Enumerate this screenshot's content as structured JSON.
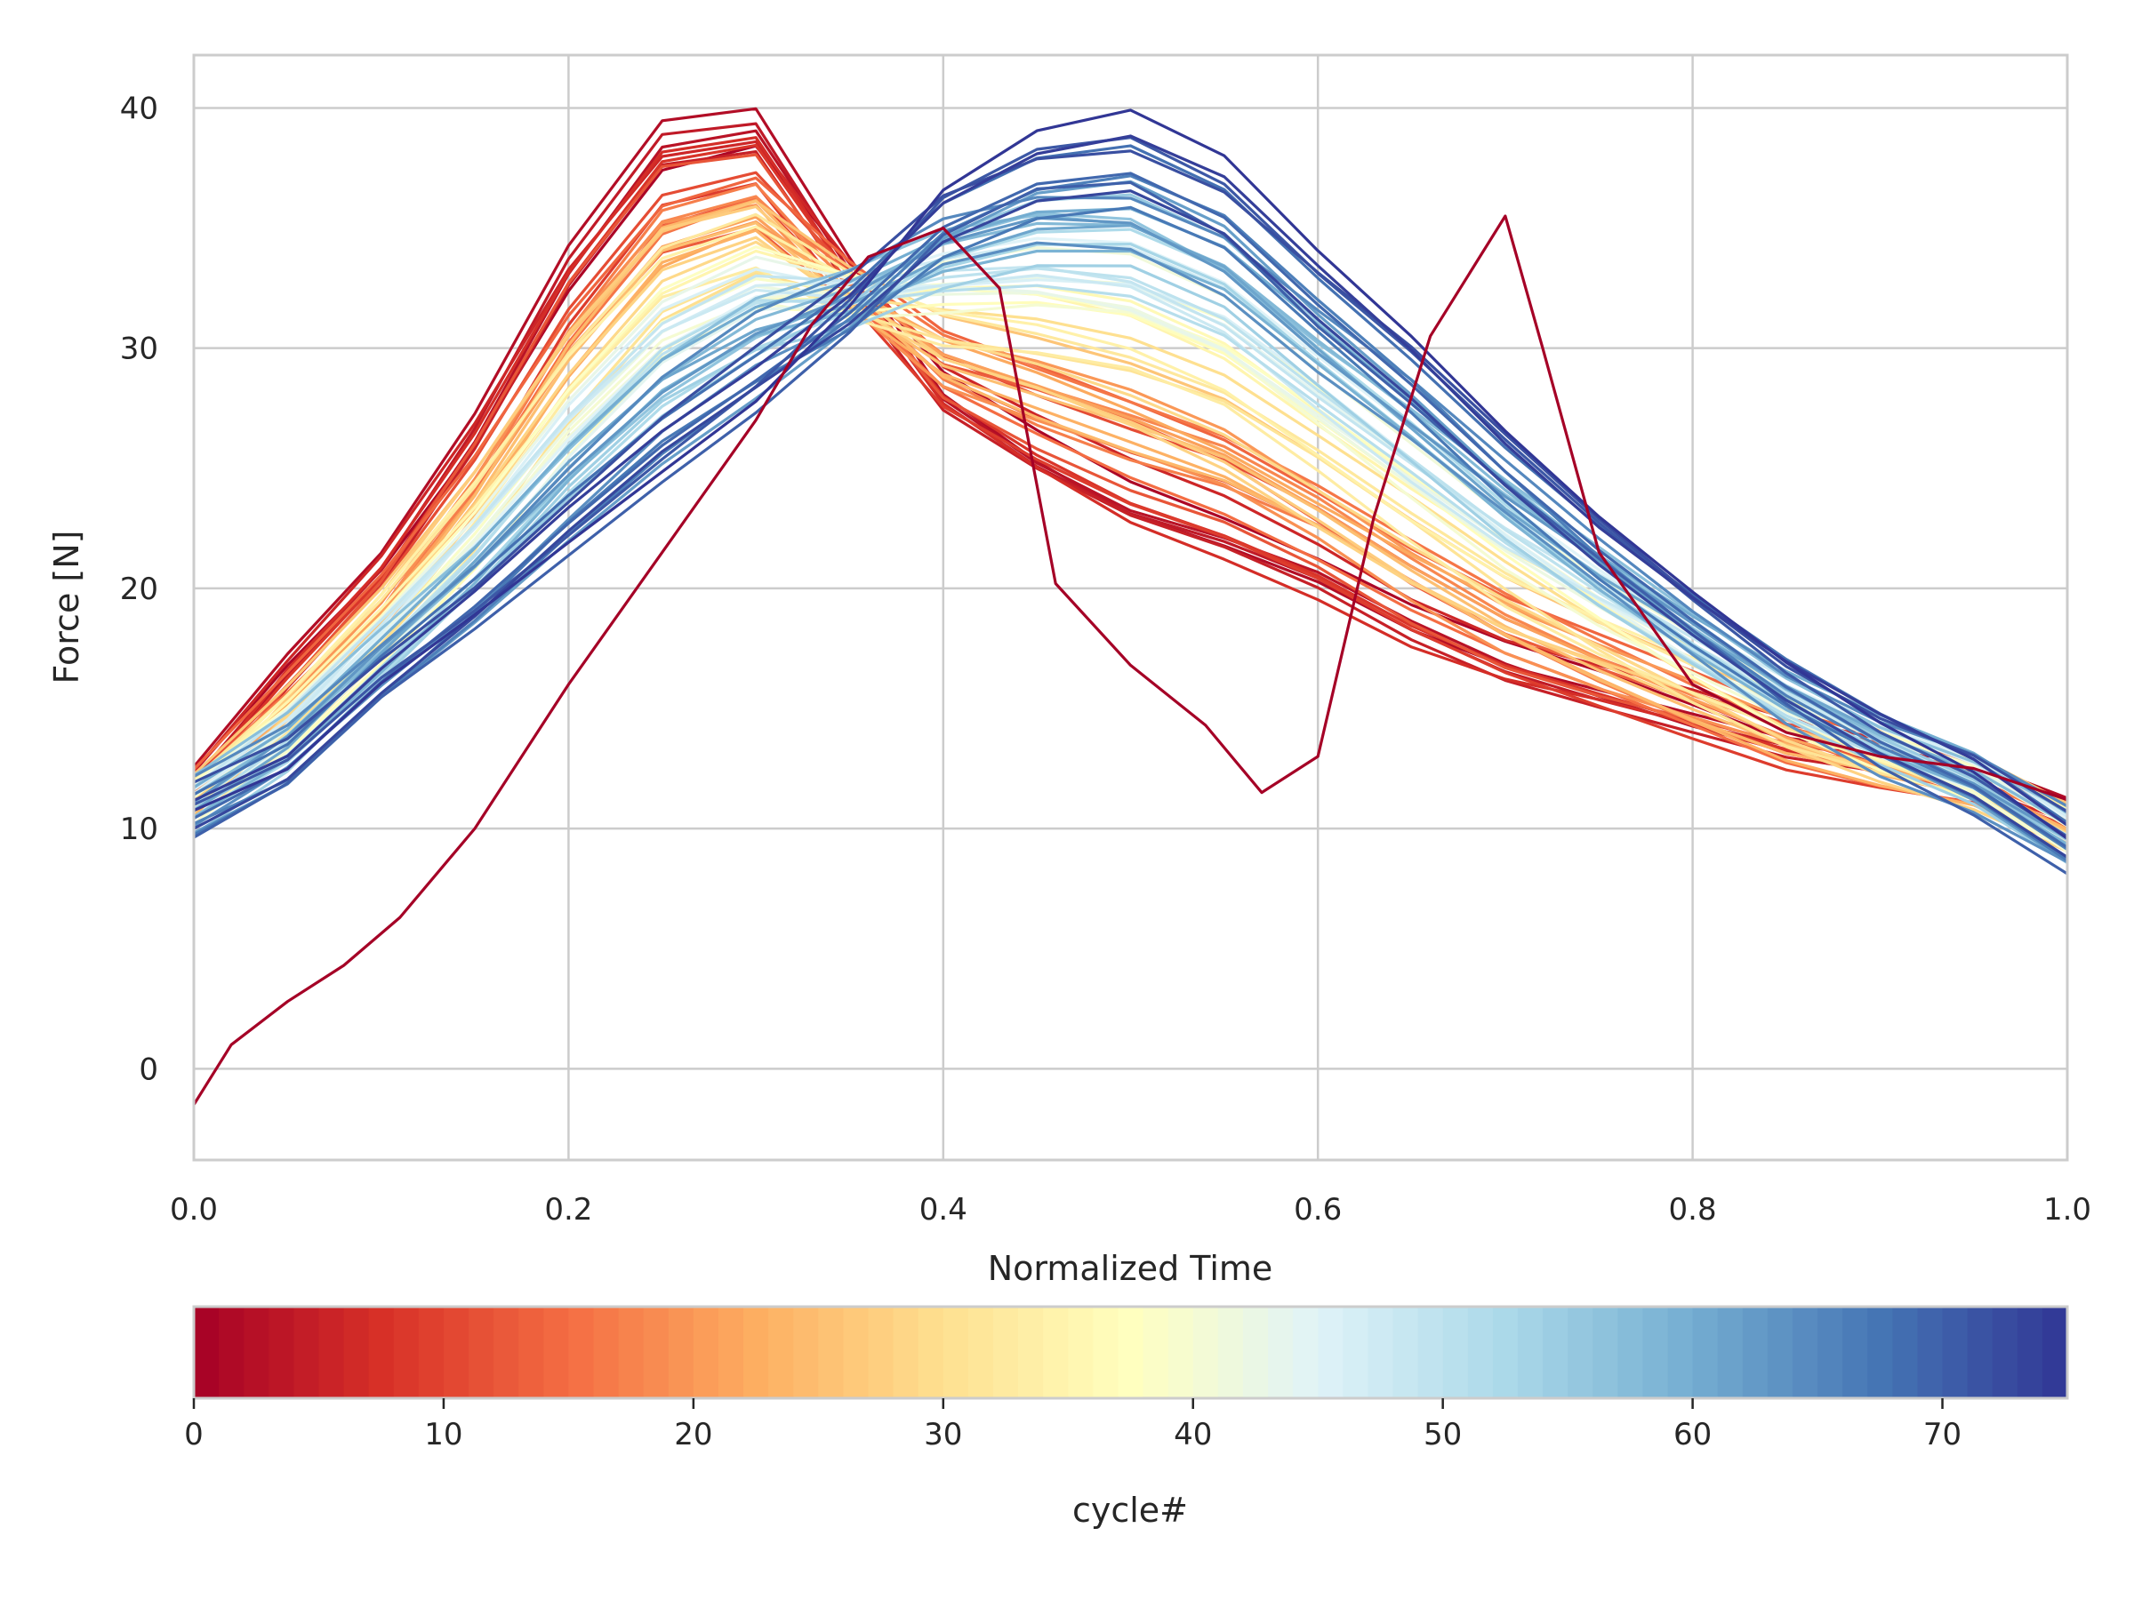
{
  "chart_data": {
    "type": "line",
    "title": "",
    "xlabel": "Normalized Time",
    "ylabel": "Force [N]",
    "xlim": [
      0.0,
      1.0
    ],
    "ylim": [
      -3.8,
      42.2
    ],
    "grid": true,
    "xticks": [
      0.0,
      0.2,
      0.4,
      0.6,
      0.8,
      1.0
    ],
    "xtick_labels": [
      "0.0",
      "0.2",
      "0.4",
      "0.6",
      "0.8",
      "1.0"
    ],
    "yticks": [
      0,
      10,
      20,
      30,
      40
    ],
    "ytick_labels": [
      "0",
      "10",
      "20",
      "30",
      "40"
    ],
    "series_count": 76,
    "series_template": {
      "x": [
        0.0,
        0.05,
        0.1,
        0.15,
        0.2,
        0.25,
        0.3,
        0.35,
        0.4,
        0.45,
        0.5,
        0.55,
        0.6,
        0.65,
        0.7,
        0.75,
        0.8,
        0.85,
        0.9,
        0.95,
        1.0
      ],
      "first": [
        11.8,
        16.5,
        20.7,
        26.5,
        33.5,
        38.7,
        39.2,
        33.0,
        27.3,
        24.5,
        22.3,
        21.0,
        19.5,
        17.5,
        16.0,
        15.0,
        14.0,
        13.0,
        12.5,
        12.0,
        10.5
      ],
      "last": [
        10.5,
        12.2,
        15.7,
        18.5,
        21.5,
        24.5,
        27.5,
        31.5,
        36.3,
        38.7,
        39.5,
        37.6,
        33.7,
        30.2,
        26.3,
        22.7,
        19.5,
        16.5,
        14.0,
        12.0,
        9.3
      ]
    },
    "outlier_series": {
      "cycle": 0,
      "x": [
        0.0,
        0.02,
        0.05,
        0.08,
        0.11,
        0.15,
        0.2,
        0.25,
        0.3,
        0.33,
        0.36,
        0.4,
        0.43,
        0.46,
        0.5,
        0.54,
        0.57,
        0.6,
        0.63,
        0.66,
        0.7,
        0.72,
        0.75,
        0.8,
        0.85,
        0.9,
        0.95,
        1.0
      ],
      "y": [
        -1.5,
        1.0,
        2.8,
        4.3,
        6.3,
        10.0,
        16.0,
        21.5,
        27.0,
        31.0,
        33.8,
        35.0,
        32.5,
        20.2,
        16.8,
        14.3,
        11.5,
        13.0,
        23.0,
        30.5,
        35.5,
        30.0,
        21.5,
        16.0,
        14.0,
        13.0,
        12.5,
        11.2
      ]
    },
    "colorbar": {
      "label": "cycle#",
      "min": 0,
      "max": 75,
      "ticks": [
        0,
        10,
        20,
        30,
        40,
        50,
        60,
        70
      ],
      "tick_labels": [
        "0",
        "10",
        "20",
        "30",
        "40",
        "50",
        "60",
        "70"
      ],
      "colormap": "RdYlBu",
      "colors": [
        "#a50026",
        "#d73027",
        "#f46d43",
        "#fdae61",
        "#fee090",
        "#ffffbf",
        "#e0f3f8",
        "#abd9e9",
        "#74add1",
        "#4575b4",
        "#313695"
      ]
    }
  }
}
